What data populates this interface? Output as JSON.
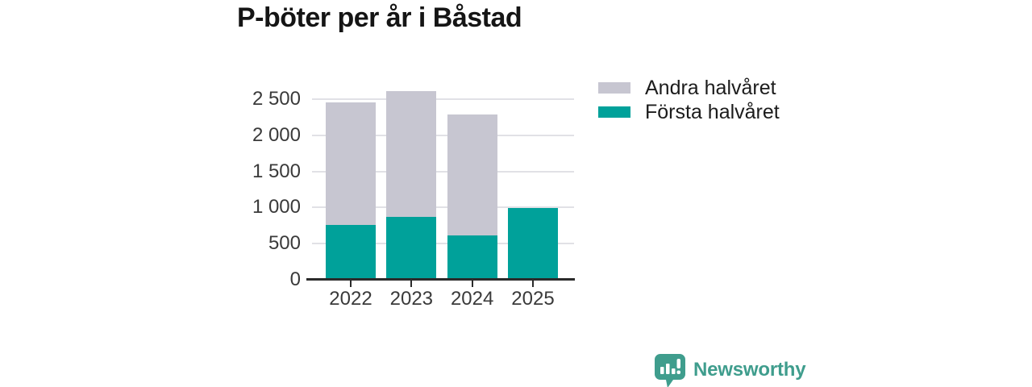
{
  "title": "P-böter per år i Båstad",
  "chart_data": {
    "type": "bar",
    "stacked": true,
    "title": "P-böter per år i Båstad",
    "categories": [
      "2022",
      "2023",
      "2024",
      "2025"
    ],
    "series": [
      {
        "name": "Första halvåret",
        "color": "#00a19a",
        "values": [
          760,
          870,
          610,
          990
        ]
      },
      {
        "name": "Andra halvåret",
        "color": "#c7c6d1",
        "values": [
          1690,
          1740,
          1680,
          0
        ]
      }
    ],
    "legend_order": [
      "Andra halvåret",
      "Första halvåret"
    ],
    "legend_position": "right",
    "grid": true,
    "xlabel": "",
    "ylabel": "",
    "ylim": [
      0,
      2500
    ],
    "y_ticks": [
      0,
      500,
      1000,
      1500,
      2000,
      2500
    ],
    "y_tick_labels": [
      "0",
      "500",
      "1 000",
      "1 500",
      "2 000",
      "2 500"
    ]
  },
  "branding": {
    "logo_text": "Newsworthy",
    "logo_color": "#3f9d8d"
  }
}
